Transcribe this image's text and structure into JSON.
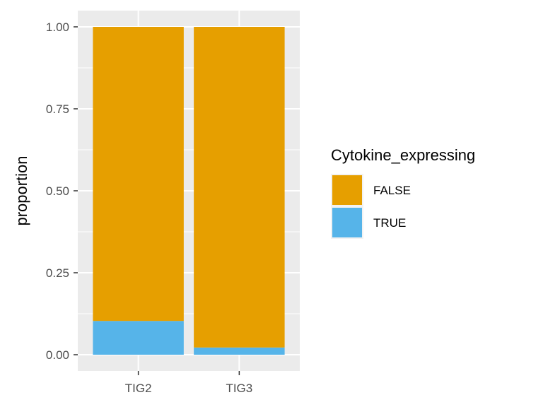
{
  "chart_data": {
    "type": "bar",
    "stacked": true,
    "categories": [
      "TIG2",
      "TIG3"
    ],
    "series": [
      {
        "name": "FALSE",
        "values": [
          0.897,
          0.978
        ],
        "color": "#E69F00"
      },
      {
        "name": "TRUE",
        "values": [
          0.103,
          0.022
        ],
        "color": "#56B4E9"
      }
    ],
    "xlabel": "",
    "ylabel": "proportion",
    "ylim": [
      0,
      1
    ],
    "yticks": [
      0,
      0.25,
      0.5,
      0.75,
      1
    ],
    "ytick_labels": [
      "0.00",
      "0.25",
      "0.50",
      "0.75",
      "1.00"
    ],
    "grid": true,
    "legend": {
      "title": "Cytokine_expressing",
      "position": "right",
      "entries": [
        "FALSE",
        "TRUE"
      ]
    },
    "panel_background": "#EBEBEB"
  }
}
